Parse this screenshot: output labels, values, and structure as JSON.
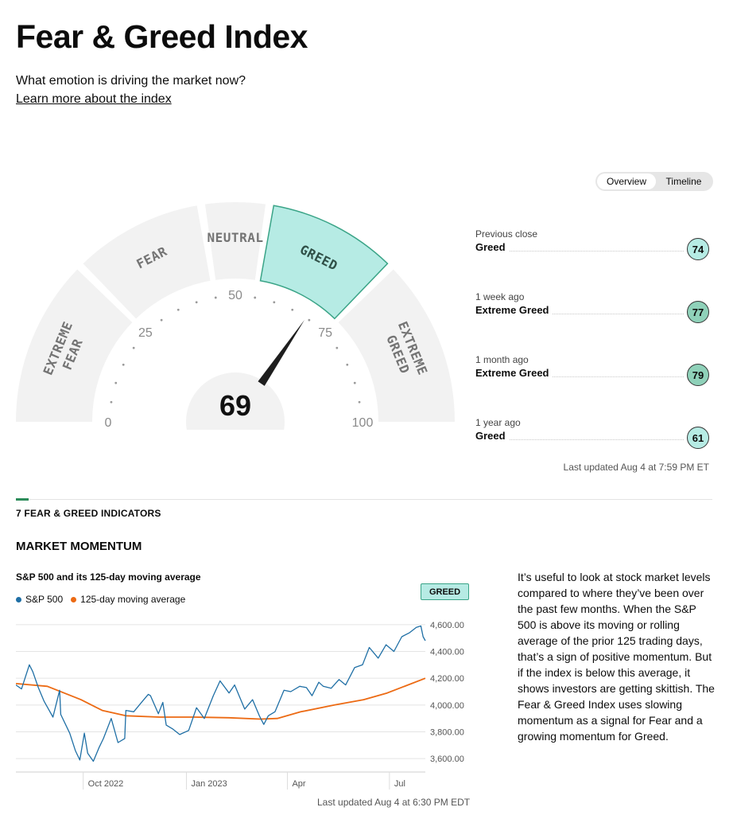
{
  "header": {
    "title": "Fear & Greed Index",
    "subtitle": "What emotion is driving the market now?",
    "learn_more": "Learn more about the index"
  },
  "view_toggle": {
    "options": [
      "Overview",
      "Timeline"
    ],
    "selected": "Overview"
  },
  "gauge": {
    "value": 69,
    "value_label": "69",
    "segments": [
      {
        "lines": [
          "EXTREME",
          "FEAR"
        ],
        "from": 0,
        "to": 25
      },
      {
        "lines": [
          "FEAR"
        ],
        "from": 25,
        "to": 45
      },
      {
        "lines": [
          "NEUTRAL"
        ],
        "from": 45,
        "to": 55
      },
      {
        "lines": [
          "GREED"
        ],
        "from": 55,
        "to": 75
      },
      {
        "lines": [
          "EXTREME",
          "GREED"
        ],
        "from": 75,
        "to": 100
      }
    ],
    "active_segment": "GREED",
    "ticks": [
      "0",
      "25",
      "50",
      "75",
      "100"
    ],
    "colors": {
      "segment": "#f2f2f2",
      "active": "#b6ebe4",
      "active_border": "#3aa487",
      "needle": "#1e1e1e",
      "label": "#747474"
    }
  },
  "history": [
    {
      "label": "Previous close",
      "rating": "Greed",
      "value": "74",
      "color": "#b6ebe4"
    },
    {
      "label": "1 week ago",
      "rating": "Extreme Greed",
      "value": "77",
      "color": "#8fd1b9"
    },
    {
      "label": "1 month ago",
      "rating": "Extreme Greed",
      "value": "79",
      "color": "#8fd1b9"
    },
    {
      "label": "1 year ago",
      "rating": "Greed",
      "value": "61",
      "color": "#b6ebe4"
    }
  ],
  "gauge_updated": "Last updated Aug 4 at 7:59 PM ET",
  "indicators_heading": "7 FEAR & GREED INDICATORS",
  "indicator": {
    "name": "MARKET MOMENTUM",
    "rating": "GREED",
    "description": "It’s useful to look at stock market levels compared to where they’ve been over the past few months. When the S&P 500 is above its moving or rolling average of the prior 125 trading days, that’s a sign of positive momentum. But if the index is below this average, it shows investors are getting skittish. The Fear & Greed Index uses slowing momentum as a signal for Fear and a growing momentum for Greed.",
    "updated": "Last updated Aug 4 at 6:30 PM EDT"
  },
  "chart_data": {
    "type": "line",
    "title": "S&P 500 and its 125-day moving average",
    "ylim": [
      3500,
      4700
    ],
    "y_ticks": [
      3600,
      3800,
      4000,
      4200,
      4400,
      4600
    ],
    "y_tick_labels": [
      "3,600.00",
      "3,800.00",
      "4,000.00",
      "4,200.00",
      "4,400.00",
      "4,600.00"
    ],
    "x_range": [
      "2022-08-04",
      "2023-08-04"
    ],
    "x_ticks": [
      {
        "date": "2022-10-03",
        "label": "Oct 2022"
      },
      {
        "date": "2023-01-03",
        "label": "Jan 2023"
      },
      {
        "date": "2023-04-03",
        "label": "Apr"
      },
      {
        "date": "2023-07-03",
        "label": "Jul"
      }
    ],
    "series": [
      {
        "name": "S&P 500",
        "color": "#1f6fa5",
        "points": [
          [
            "2022-08-04",
            4150
          ],
          [
            "2022-08-09",
            4120
          ],
          [
            "2022-08-16",
            4300
          ],
          [
            "2022-08-19",
            4250
          ],
          [
            "2022-08-24",
            4130
          ],
          [
            "2022-08-29",
            4030
          ],
          [
            "2022-09-06",
            3910
          ],
          [
            "2022-09-12",
            4110
          ],
          [
            "2022-09-13",
            3930
          ],
          [
            "2022-09-21",
            3790
          ],
          [
            "2022-09-26",
            3660
          ],
          [
            "2022-09-30",
            3590
          ],
          [
            "2022-10-04",
            3790
          ],
          [
            "2022-10-07",
            3640
          ],
          [
            "2022-10-12",
            3580
          ],
          [
            "2022-10-17",
            3680
          ],
          [
            "2022-10-21",
            3750
          ],
          [
            "2022-10-28",
            3900
          ],
          [
            "2022-11-03",
            3720
          ],
          [
            "2022-11-09",
            3750
          ],
          [
            "2022-11-10",
            3960
          ],
          [
            "2022-11-17",
            3950
          ],
          [
            "2022-11-25",
            4030
          ],
          [
            "2022-11-30",
            4080
          ],
          [
            "2022-12-02",
            4070
          ],
          [
            "2022-12-09",
            3935
          ],
          [
            "2022-12-13",
            4020
          ],
          [
            "2022-12-16",
            3850
          ],
          [
            "2022-12-22",
            3820
          ],
          [
            "2022-12-28",
            3780
          ],
          [
            "2023-01-05",
            3810
          ],
          [
            "2023-01-12",
            3980
          ],
          [
            "2023-01-19",
            3900
          ],
          [
            "2023-01-27",
            4070
          ],
          [
            "2023-02-02",
            4180
          ],
          [
            "2023-02-10",
            4090
          ],
          [
            "2023-02-15",
            4150
          ],
          [
            "2023-02-24",
            3970
          ],
          [
            "2023-03-03",
            4040
          ],
          [
            "2023-03-09",
            3920
          ],
          [
            "2023-03-13",
            3855
          ],
          [
            "2023-03-17",
            3920
          ],
          [
            "2023-03-23",
            3950
          ],
          [
            "2023-03-31",
            4110
          ],
          [
            "2023-04-06",
            4100
          ],
          [
            "2023-04-14",
            4140
          ],
          [
            "2023-04-20",
            4130
          ],
          [
            "2023-04-25",
            4070
          ],
          [
            "2023-05-01",
            4170
          ],
          [
            "2023-05-05",
            4140
          ],
          [
            "2023-05-12",
            4125
          ],
          [
            "2023-05-19",
            4190
          ],
          [
            "2023-05-25",
            4150
          ],
          [
            "2023-06-02",
            4280
          ],
          [
            "2023-06-09",
            4300
          ],
          [
            "2023-06-15",
            4430
          ],
          [
            "2023-06-23",
            4350
          ],
          [
            "2023-06-30",
            4450
          ],
          [
            "2023-07-07",
            4400
          ],
          [
            "2023-07-14",
            4510
          ],
          [
            "2023-07-21",
            4540
          ],
          [
            "2023-07-27",
            4580
          ],
          [
            "2023-07-31",
            4590
          ],
          [
            "2023-08-02",
            4510
          ],
          [
            "2023-08-04",
            4480
          ]
        ]
      },
      {
        "name": "125-day moving average",
        "color": "#ec6a13",
        "points": [
          [
            "2022-08-04",
            4160
          ],
          [
            "2022-09-01",
            4140
          ],
          [
            "2022-10-01",
            4040
          ],
          [
            "2022-10-20",
            3960
          ],
          [
            "2022-11-10",
            3920
          ],
          [
            "2022-12-10",
            3910
          ],
          [
            "2023-01-10",
            3910
          ],
          [
            "2023-02-10",
            3905
          ],
          [
            "2023-03-10",
            3895
          ],
          [
            "2023-03-25",
            3900
          ],
          [
            "2023-04-15",
            3950
          ],
          [
            "2023-05-15",
            4000
          ],
          [
            "2023-06-10",
            4040
          ],
          [
            "2023-07-01",
            4090
          ],
          [
            "2023-08-04",
            4200
          ]
        ]
      }
    ]
  }
}
